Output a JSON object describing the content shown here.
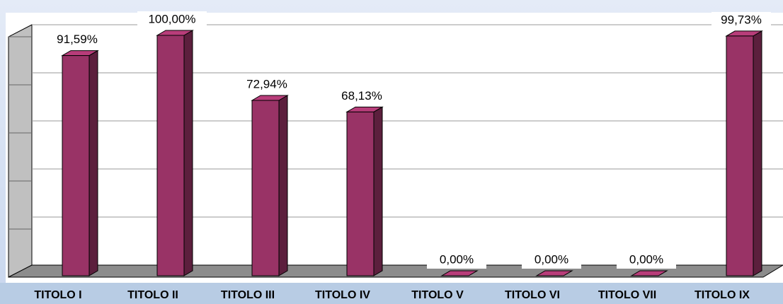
{
  "chart_data": {
    "type": "bar",
    "categories": [
      "TITOLO I",
      "TITOLO II",
      "TITOLO III",
      "TITOLO IV",
      "TITOLO V",
      "TITOLO VI",
      "TITOLO VII",
      "TITOLO IX"
    ],
    "values": [
      91.59,
      100,
      72.94,
      68.13,
      0,
      0,
      0,
      99.73
    ],
    "value_labels": [
      "91,59%",
      "100,00%",
      "72,94%",
      "68,13%",
      "0,00%",
      "0,00%",
      "0,00%",
      "99,73%"
    ],
    "color": "#993366",
    "ylim": [
      0,
      100
    ],
    "yticks": [
      0,
      20,
      40,
      60,
      80,
      100
    ],
    "grid": true
  }
}
